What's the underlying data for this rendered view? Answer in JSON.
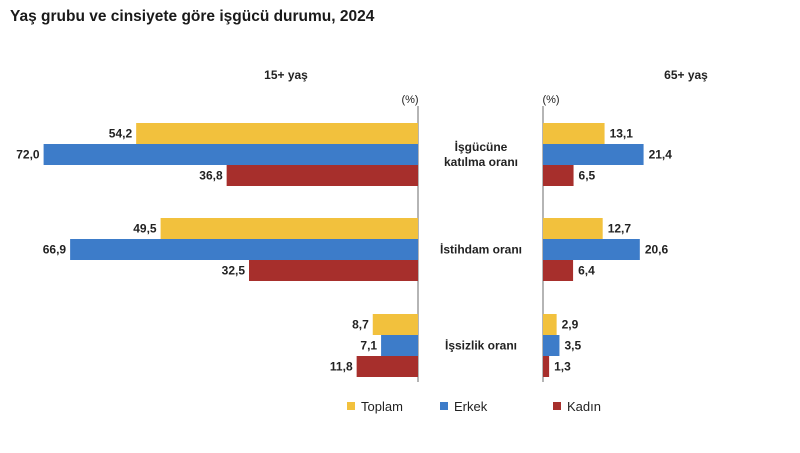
{
  "title": "Yaş grubu ve cinsiyete göre işgücü durumu, 2024",
  "colors": {
    "Toplam": "#F2C13D",
    "Erkek": "#3D7CC9",
    "Kadın": "#A72F2C"
  },
  "chart_data": {
    "type": "bar",
    "orientation": "horizontal",
    "unit_label": "(%)",
    "categories": [
      "İşgücüne\nkatılma oranı",
      "İstihdam oranı",
      "İşsizlik oranı"
    ],
    "panels": [
      {
        "name": "15+ yaş",
        "direction": "left",
        "series": [
          {
            "name": "Toplam",
            "values": [
              54.2,
              49.5,
              8.7
            ]
          },
          {
            "name": "Erkek",
            "values": [
              72.0,
              66.9,
              7.1
            ]
          },
          {
            "name": "Kadın",
            "values": [
              36.8,
              32.5,
              11.8
            ]
          }
        ]
      },
      {
        "name": "65+ yaş",
        "direction": "right",
        "series": [
          {
            "name": "Toplam",
            "values": [
              13.1,
              12.7,
              2.9
            ]
          },
          {
            "name": "Erkek",
            "values": [
              21.4,
              20.6,
              3.5
            ]
          },
          {
            "name": "Kadın",
            "values": [
              6.5,
              6.4,
              1.3
            ]
          }
        ]
      }
    ],
    "legend": [
      "Toplam",
      "Erkek",
      "Kadın"
    ],
    "legend_position": "bottom",
    "grid": false
  }
}
